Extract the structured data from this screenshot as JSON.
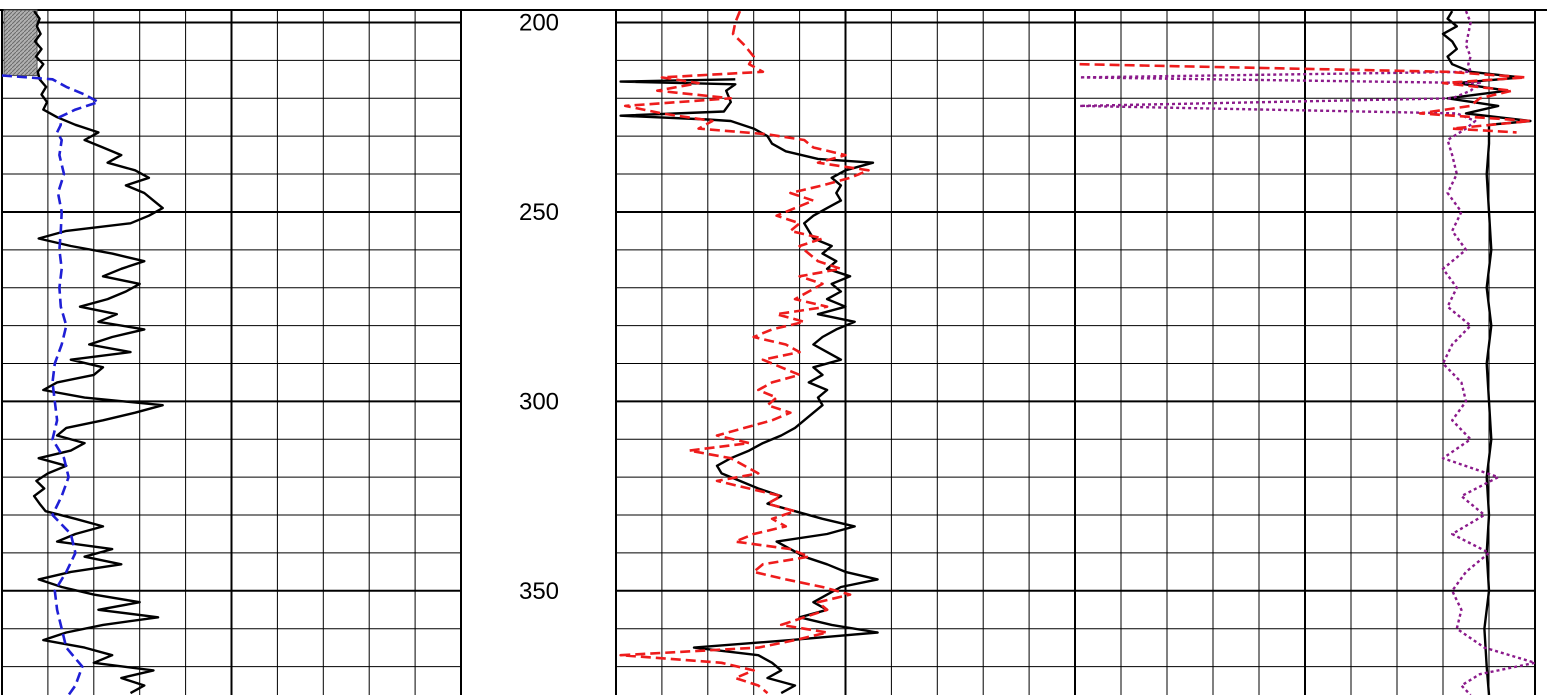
{
  "chart_data": {
    "type": "line",
    "title": "",
    "depth_axis": {
      "ticks": [
        "200",
        "250",
        "300",
        "350"
      ],
      "range": [
        196.7,
        377.5
      ],
      "minor_step": 10
    },
    "grid": true,
    "colors": {
      "black_curve": "#000000",
      "blue_curve": "#1f1fd6",
      "red_curve": "#ee1c1c",
      "purple_curve": "#8b1a8b",
      "grid": "#000000",
      "flag_fill": "#8f8f8f"
    },
    "tracks": [
      {
        "id": "track-1",
        "flag": {
          "depth_top": 196.7,
          "depth_bottom": 214
        },
        "series": [
          {
            "key": "black",
            "style": "solid",
            "depth": [
              197,
              199,
              201,
              203,
              205,
              207,
              209,
              211,
              213,
              215,
              217,
              219,
              221,
              223,
              225,
              227,
              229,
              231,
              233,
              235,
              237,
              239,
              241,
              243,
              245,
              247,
              249,
              251,
              253,
              255,
              257,
              259,
              261,
              263,
              265,
              267,
              269,
              271,
              273,
              275,
              277,
              279,
              281,
              283,
              285,
              287,
              289,
              291,
              293,
              295,
              297,
              299,
              301,
              303,
              305,
              307,
              309,
              311,
              313,
              315,
              317,
              319,
              321,
              323,
              325,
              327,
              329,
              331,
              333,
              335,
              337,
              339,
              341,
              343,
              345,
              347,
              349,
              351,
              353,
              355,
              357,
              359,
              361,
              363,
              365,
              367,
              369,
              371,
              373,
              375,
              377
            ],
            "value": [
              0.7,
              0.82,
              0.76,
              0.84,
              0.72,
              0.86,
              0.74,
              0.9,
              0.78,
              0.82,
              0.96,
              0.86,
              0.98,
              0.9,
              1.2,
              1.6,
              2.1,
              1.8,
              2.2,
              2.6,
              2.3,
              2.9,
              3.2,
              2.7,
              3.1,
              3.3,
              3.5,
              3.2,
              2.8,
              1.4,
              0.8,
              1.5,
              2.4,
              3.1,
              2.6,
              2.2,
              3.0,
              2.7,
              2.3,
              1.7,
              2.5,
              2.1,
              3.1,
              2.4,
              1.9,
              2.8,
              1.5,
              2.2,
              2.0,
              1.2,
              0.9,
              1.8,
              3.5,
              2.9,
              2.2,
              1.4,
              1.2,
              1.8,
              1.5,
              0.8,
              1.4,
              1.0,
              0.75,
              0.92,
              0.7,
              0.82,
              0.95,
              1.6,
              2.2,
              1.6,
              1.2,
              2.4,
              1.8,
              2.6,
              1.5,
              0.8,
              1.3,
              2.0,
              3.0,
              2.1,
              3.4,
              2.2,
              1.4,
              0.9,
              1.8,
              2.4,
              2.0,
              3.3,
              2.6,
              3.1,
              2.8
            ]
          },
          {
            "key": "blue",
            "style": "dashed",
            "depth": [
              214,
              215,
              217,
              219,
              221,
              223,
              225,
              227,
              229,
              231,
              235,
              240,
              245,
              250,
              255,
              260,
              265,
              270,
              275,
              280,
              285,
              290,
              295,
              300,
              305,
              310,
              315,
              320,
              325,
              330,
              335,
              340,
              345,
              350,
              355,
              360,
              365,
              370,
              375,
              377.5
            ],
            "value": [
              0,
              1.1,
              1.4,
              1.8,
              2.1,
              1.6,
              1.25,
              1.28,
              1.2,
              1.3,
              1.25,
              1.35,
              1.22,
              1.3,
              1.28,
              1.25,
              1.3,
              1.25,
              1.28,
              1.4,
              1.3,
              1.15,
              1.1,
              1.15,
              1.2,
              1.1,
              1.35,
              1.45,
              1.3,
              1.1,
              1.5,
              1.6,
              1.4,
              1.15,
              1.2,
              1.3,
              1.4,
              1.75,
              1.6,
              1.45
            ]
          }
        ]
      },
      {
        "id": "track-2",
        "series": [
          {
            "key": "black",
            "style": "solid",
            "depth": [
              215,
              215.6,
              216.3,
              218,
              221,
              223.5,
              224.6,
              225.6,
              226,
              228,
              230,
              232,
              234,
              236,
              237,
              239,
              241,
              243,
              245,
              247,
              249,
              251,
              253,
              255,
              257,
              259,
              261,
              263,
              265,
              267,
              269,
              271,
              273,
              275,
              277,
              279,
              281,
              283,
              285,
              287,
              289,
              291,
              293,
              295,
              297,
              299,
              301,
              303,
              305,
              307,
              309,
              311,
              313,
              315,
              317,
              319,
              321,
              323,
              325,
              327,
              329,
              331,
              333,
              335,
              337,
              339,
              341,
              343,
              345,
              347,
              349,
              351,
              353,
              355,
              357,
              359,
              361,
              363,
              365,
              367,
              369,
              371,
              373,
              375,
              377
            ],
            "value": [
              2.6,
              0.1,
              2.6,
              2.4,
              2.5,
              2.35,
              0.1,
              2.0,
              2.5,
              3.0,
              3.3,
              3.4,
              3.7,
              4.4,
              5.6,
              5.0,
              4.7,
              4.9,
              4.8,
              4.9,
              4.6,
              4.3,
              4.1,
              4.2,
              4.3,
              4.7,
              4.5,
              4.8,
              4.6,
              5.1,
              4.7,
              4.9,
              4.6,
              5.0,
              4.4,
              5.2,
              4.8,
              4.5,
              4.3,
              4.6,
              4.9,
              4.3,
              4.5,
              4.2,
              4.6,
              4.4,
              4.5,
              4.3,
              4.1,
              3.9,
              3.6,
              3.2,
              2.9,
              2.5,
              2.2,
              2.3,
              2.7,
              3.1,
              3.6,
              3.3,
              3.9,
              4.5,
              5.2,
              4.6,
              3.5,
              3.8,
              4.1,
              4.6,
              5.0,
              5.7,
              4.9,
              4.6,
              4.3,
              4.6,
              4.0,
              4.7,
              5.7,
              3.8,
              1.7,
              3.1,
              3.4,
              3.6,
              3.3,
              3.9,
              3.6
            ]
          },
          {
            "key": "red",
            "style": "dashed",
            "depth": [
              197,
              200,
              203,
              206,
              209,
              211,
              213,
              214.5,
              216,
              218,
              220,
              222,
              224,
              226,
              228,
              229.5,
              231,
              233,
              235,
              237,
              239,
              241,
              243,
              245,
              247,
              249,
              251,
              253,
              255,
              257,
              259,
              261,
              263,
              265,
              267,
              269,
              271,
              273,
              275,
              277,
              279,
              281,
              283,
              285,
              287,
              289,
              291,
              293,
              295,
              297,
              299,
              301,
              303,
              305,
              307,
              309,
              311,
              313,
              315,
              317,
              319,
              321,
              323,
              325,
              327,
              329,
              331,
              333,
              335,
              337,
              339,
              341,
              343,
              345,
              347,
              349,
              351,
              353,
              355,
              357,
              359,
              361,
              363,
              365,
              367,
              369,
              371,
              373,
              375,
              377
            ],
            "value": [
              2.7,
              2.6,
              2.55,
              2.8,
              3.0,
              2.9,
              3.2,
              1.0,
              1.8,
              0.9,
              2.5,
              0.2,
              1.0,
              2.1,
              1.8,
              3.3,
              4.1,
              4.3,
              5.0,
              4.4,
              5.5,
              5.1,
              4.5,
              3.8,
              4.3,
              3.9,
              3.5,
              4.0,
              3.8,
              4.5,
              4.0,
              4.2,
              4.4,
              4.9,
              4.0,
              4.5,
              4.2,
              3.9,
              4.6,
              3.5,
              4.1,
              3.4,
              3.0,
              3.7,
              4.0,
              3.2,
              3.6,
              4.0,
              3.4,
              3.1,
              3.5,
              3.3,
              3.8,
              3.4,
              2.8,
              2.2,
              2.9,
              1.6,
              2.5,
              2.8,
              3.1,
              2.2,
              2.9,
              3.6,
              3.3,
              3.9,
              3.4,
              3.7,
              3.0,
              2.6,
              3.8,
              4.2,
              3.2,
              3.0,
              3.7,
              4.5,
              5.1,
              4.4,
              4.6,
              4.1,
              3.6,
              4.6,
              3.9,
              3.1,
              0.1,
              2.3,
              3.0,
              2.6,
              3.1,
              3.3
            ]
          }
        ]
      },
      {
        "id": "track-3",
        "series": [
          {
            "key": "black",
            "style": "solid",
            "depth": [
              197,
              199,
              201,
              203,
              205,
              207,
              209,
              211,
              213,
              214.5,
              216,
              218,
              220,
              222,
              224,
              226,
              227,
              232,
              240,
              250,
              260,
              270,
              280,
              290,
              300,
              310,
              320,
              330,
              340,
              350,
              360,
              370,
              377.5
            ],
            "value": [
              8.2,
              8.1,
              8.3,
              8.0,
              8.2,
              8.3,
              8.1,
              8.2,
              8.6,
              9.7,
              8.3,
              9.4,
              8.1,
              9.2,
              8.5,
              9.9,
              9.0,
              9.0,
              8.95,
              9.0,
              9.05,
              8.95,
              9.05,
              8.95,
              9.0,
              9.05,
              8.95,
              9.0,
              8.95,
              9.0,
              8.9,
              8.95,
              9.0
            ]
          },
          {
            "key": "purple",
            "style": "dotted",
            "depth": [
              197,
              200,
              203,
              206,
              209,
              211,
              213,
              214.5,
              216,
              218,
              220,
              222,
              224,
              226,
              228,
              231,
              235,
              240,
              245,
              250,
              255,
              260,
              265,
              270,
              275,
              280,
              285,
              290,
              295,
              300,
              305,
              310,
              315,
              320,
              325,
              330,
              335,
              340,
              345,
              350,
              355,
              360,
              365,
              369,
              372,
              375,
              377.5
            ],
            "value": [
              8.5,
              8.6,
              8.55,
              8.5,
              8.6,
              8.55,
              8.6,
              0.1,
              8.8,
              8.6,
              8.2,
              0.1,
              8.3,
              8.7,
              8.5,
              8.1,
              8.2,
              8.3,
              8.1,
              8.4,
              8.2,
              8.5,
              8.0,
              8.3,
              8.1,
              8.6,
              8.2,
              8.0,
              8.4,
              8.5,
              8.2,
              8.6,
              8.0,
              9.2,
              8.4,
              8.9,
              8.2,
              9.0,
              8.5,
              8.2,
              8.4,
              8.3,
              8.9,
              10.0,
              8.8,
              8.4,
              8.6
            ]
          },
          {
            "key": "red",
            "style": "dashed",
            "depth": [
              211,
              213,
              214.5,
              216,
              218,
              220,
              222,
              224,
              226,
              228,
              229
            ],
            "value": [
              0.1,
              8.1,
              9.8,
              8.0,
              9.5,
              8.8,
              8.6,
              7.5,
              9.9,
              8.2,
              9.6
            ]
          }
        ]
      }
    ]
  }
}
